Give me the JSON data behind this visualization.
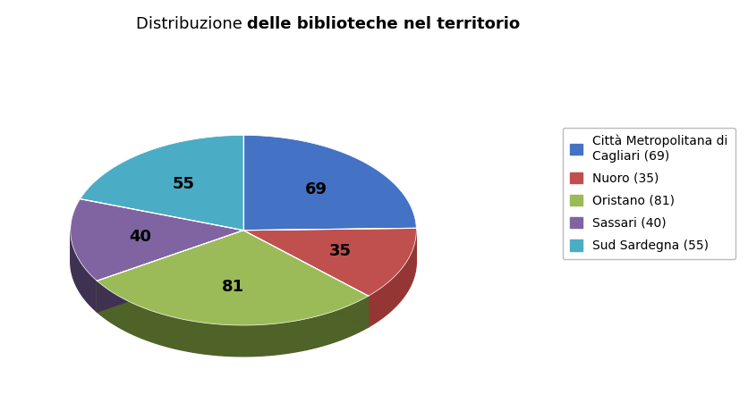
{
  "title_normal": "Distribuzione ",
  "title_bold": "delle biblioteche nel territorio",
  "labels": [
    "Città Metropolitana di\nCagliari (69)",
    "Nuoro (35)",
    "Oristano (81)",
    "Sassari (40)",
    "Sud Sardegna (55)"
  ],
  "values": [
    69,
    35,
    81,
    40,
    55
  ],
  "colors": [
    "#4472C4",
    "#C0504D",
    "#9BBB59",
    "#8064A2",
    "#4BACC6"
  ],
  "dark_colors": [
    "#17375E",
    "#943634",
    "#4F6228",
    "#3F3151",
    "#17375E"
  ],
  "startangle": 90,
  "background_color": "#FFFFFF",
  "figsize": [
    8.37,
    4.51
  ],
  "dpi": 100,
  "depth": 0.12,
  "label_fontsize": 13,
  "legend_fontsize": 10
}
